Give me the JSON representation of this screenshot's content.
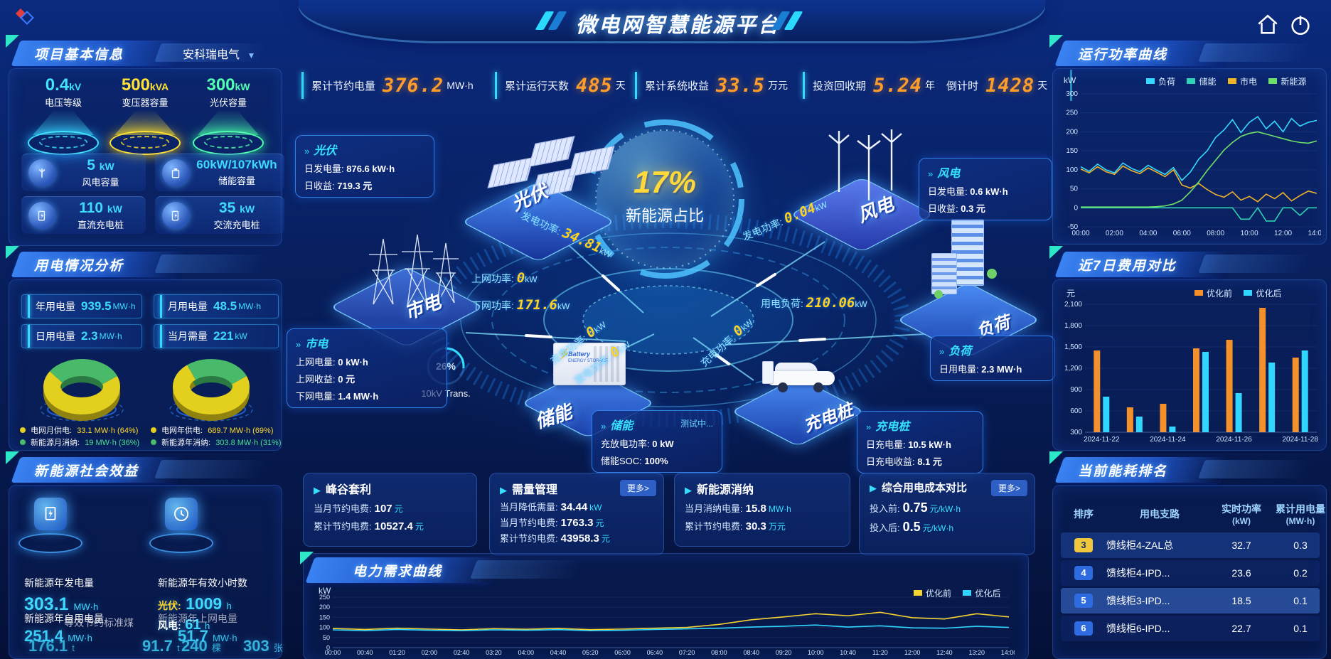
{
  "app": {
    "title": "微电网智慧能源平台",
    "company": "安科瑞电气"
  },
  "stats_bar": [
    {
      "label": "累计节约电量",
      "value": "376.2",
      "unit": "MW·h"
    },
    {
      "label": "累计运行天数",
      "value": "485",
      "unit": "天"
    },
    {
      "label": "累计系统收益",
      "value": "33.5",
      "unit": "万元"
    },
    {
      "label": "投资回收期",
      "value": "5.24",
      "unit": "年"
    },
    {
      "label": "倒计时",
      "value": "1428",
      "unit": "天"
    }
  ],
  "project": {
    "title": "项目基本信息",
    "cones": [
      {
        "value": "0.4",
        "unit": "kV",
        "label": "电压等级",
        "color": "#41e3ff"
      },
      {
        "value": "500",
        "unit": "kVA",
        "label": "变压器容量",
        "color": "#ffe235"
      },
      {
        "value": "300",
        "unit": "kW",
        "label": "光伏容量",
        "color": "#51ffb0"
      }
    ],
    "cards": [
      {
        "value": "5",
        "unit": "kW",
        "label": "风电容量"
      },
      {
        "value": "60kW/107kWh",
        "unit": "",
        "label": "储能容量"
      },
      {
        "value": "110",
        "unit": "kW",
        "label": "直流充电桩"
      },
      {
        "value": "35",
        "unit": "kW",
        "label": "交流充电桩"
      }
    ]
  },
  "usage": {
    "title": "用电情况分析",
    "stats": [
      {
        "label": "年用电量",
        "value": "939.5",
        "unit": "MW·h"
      },
      {
        "label": "月用电量",
        "value": "48.5",
        "unit": "MW·h"
      },
      {
        "label": "日用电量",
        "value": "2.3",
        "unit": "MW·h"
      },
      {
        "label": "当月需量",
        "value": "221",
        "unit": "kW"
      }
    ],
    "month_legend": [
      {
        "label": "电网月供电:",
        "value": "33.1 MW·h (64%)"
      },
      {
        "label": "新能源月消纳:",
        "value": "19 MW·h (36%)"
      }
    ],
    "year_legend": [
      {
        "label": "电网年供电:",
        "value": "689.7 MW·h (69%)"
      },
      {
        "label": "新能源年消纳:",
        "value": "303.8 MW·h (31%)"
      }
    ]
  },
  "benefits": {
    "title": "新能源社会效益",
    "generation": {
      "label": "新能源年发电量",
      "value": "303.1",
      "unit": "MW·h"
    },
    "hours": {
      "label": "新能源年有效小时数",
      "pv_label": "光伏:",
      "pv_value": "1009",
      "pv_unit": "h",
      "wind_label": "风电:",
      "wind_value": "61",
      "wind_unit": "h"
    },
    "self_use": {
      "label": "新能源年自用电量",
      "value": "251.4",
      "unit": "MW·h"
    },
    "coal": {
      "label": "等效节约标准煤",
      "value": "176.1",
      "unit": "t"
    },
    "co2": {
      "value": "91.7",
      "unit": "t"
    },
    "to_grid": {
      "label": "新能源年上网电量",
      "value": "51.7",
      "unit": "MW·h"
    },
    "trees": {
      "label": "等效植树数",
      "value": "240",
      "unit": "棵"
    },
    "certs": {
      "value": "303",
      "unit": "张"
    }
  },
  "diagram": {
    "center": {
      "value": "17%",
      "label": "新能源占比"
    },
    "gauge": {
      "value": "26%",
      "label": "10kV Trans."
    },
    "pv": {
      "name": "光伏",
      "l1": "日发电量:",
      "v1": "876.6 kW·h",
      "l2": "日收益:",
      "v2": "719.3 元"
    },
    "wind": {
      "name": "风电",
      "l1": "日发电量:",
      "v1": "0.6 kW·h",
      "l2": "日收益:",
      "v2": "0.3 元"
    },
    "grid": {
      "name": "市电",
      "l1": "上网电量:",
      "v1": "0 kW·h",
      "l2": "上网收益:",
      "v2": "0 元",
      "l3": "下网电量:",
      "v3": "1.4 MW·h"
    },
    "load": {
      "name": "负荷",
      "l1": "日用电量:",
      "v1": "2.3 MW·h"
    },
    "storage": {
      "name": "储能",
      "status": "测试中...",
      "l1": "充放电功率:",
      "v1": "0 kW",
      "l2": "储能SOC:",
      "v2": "100%"
    },
    "charger": {
      "name": "充电桩",
      "l1": "日充电量:",
      "v1": "10.5 kW·h",
      "l2": "日充电收益:",
      "v2": "8.1 元"
    },
    "flows": [
      {
        "label": "发电功率:",
        "value": "34.81",
        "unit": "kW"
      },
      {
        "label": "发电功率:",
        "value": "0.04",
        "unit": "kW"
      },
      {
        "label": "上网功率:",
        "value": "0",
        "unit": "kW"
      },
      {
        "label": "下网功率:",
        "value": "171.6",
        "unit": "kW"
      },
      {
        "label": "用电负荷:",
        "value": "210.06",
        "unit": "kW"
      },
      {
        "label": "充电功率:",
        "value": "0",
        "unit": "kW"
      },
      {
        "label": "放电功率:",
        "value": "0",
        "unit": "kW"
      },
      {
        "label": "充电功率:",
        "value": "0",
        "unit": "kW"
      }
    ]
  },
  "cards": [
    {
      "title": "峰谷套利",
      "lines": [
        {
          "label": "当月节约电费:",
          "value": "107",
          "unit": "元"
        },
        {
          "label": "累计节约电费:",
          "value": "10527.4",
          "unit": "元"
        }
      ]
    },
    {
      "title": "需量管理",
      "more": "更多>",
      "lines": [
        {
          "label": "当月降低需量:",
          "value": "34.44",
          "unit": "kW"
        },
        {
          "label": "当月节约电费:",
          "value": "1763.3",
          "unit": "元"
        },
        {
          "label": "累计节约电费:",
          "value": "43958.3",
          "unit": "元"
        }
      ]
    },
    {
      "title": "新能源消纳",
      "lines": [
        {
          "label": "当月消纳电量:",
          "value": "15.8",
          "unit": "MW·h"
        },
        {
          "label": "累计节约电费:",
          "value": "30.3",
          "unit": "万元"
        }
      ]
    },
    {
      "title": "综合用电成本对比",
      "more": "更多>",
      "lines": [
        {
          "label": "投入前:",
          "value": "0.75",
          "unit": "元/kW·h"
        },
        {
          "label": "投入后:",
          "value": "0.5",
          "unit": "元/kW·h"
        }
      ]
    }
  ],
  "demand_panel": {
    "title": "电力需求曲线"
  },
  "right": {
    "power_panel": {
      "title": "运行功率曲线",
      "ylabel": "kW"
    },
    "cost_panel": {
      "title": "近7日费用对比",
      "ylabel": "元"
    },
    "ranking": {
      "title": "当前能耗排名",
      "headers": [
        {
          "t": "排序",
          "s": ""
        },
        {
          "t": "用电支路",
          "s": ""
        },
        {
          "t": "实时功率",
          "s": "(kW)"
        },
        {
          "t": "累计用电量",
          "s": "(MW·h)"
        }
      ],
      "rows": [
        {
          "rank": "3",
          "name": "馈线柜4-ZAL总",
          "power": "32.7",
          "energy": "0.3"
        },
        {
          "rank": "4",
          "name": "馈线柜4-IPD...",
          "power": "23.6",
          "energy": "0.2"
        },
        {
          "rank": "5",
          "name": "馈线柜3-IPD...",
          "power": "18.5",
          "energy": "0.1"
        },
        {
          "rank": "6",
          "name": "馈线柜6-IPD...",
          "power": "22.7",
          "energy": "0.1"
        }
      ]
    }
  },
  "chart_data": [
    {
      "id": "chart-run",
      "type": "line",
      "title": "运行功率曲线",
      "ylabel": "kW",
      "ylim": [
        -50,
        300
      ],
      "yticks": [
        300,
        250,
        200,
        150,
        100,
        50,
        0,
        -50
      ],
      "x_labels": [
        "00:00",
        "02:00",
        "04:00",
        "06:00",
        "08:00",
        "10:00",
        "12:00",
        "14:00"
      ],
      "legend_position": "top",
      "series": [
        {
          "name": "负荷",
          "color": "#35d8ff",
          "values": [
            108,
            96,
            115,
            100,
            92,
            118,
            104,
            95,
            112,
            99,
            88,
            106,
            72,
            94,
            128,
            150,
            185,
            205,
            232,
            198,
            225,
            240,
            208,
            228,
            200,
            235,
            215,
            225,
            230
          ]
        },
        {
          "name": "储能",
          "color": "#2fd3b5",
          "values": [
            0,
            0,
            0,
            0,
            0,
            0,
            0,
            0,
            0,
            0,
            0,
            0,
            0,
            0,
            0,
            0,
            0,
            0,
            0,
            -30,
            -30,
            0,
            -35,
            -35,
            0,
            0,
            -20,
            0,
            0
          ]
        },
        {
          "name": "市电",
          "color": "#f0b32a",
          "values": [
            102,
            92,
            108,
            95,
            88,
            110,
            98,
            90,
            105,
            94,
            82,
            100,
            60,
            52,
            64,
            48,
            35,
            28,
            42,
            20,
            30,
            16,
            36,
            24,
            40,
            18,
            32,
            44,
            38
          ]
        },
        {
          "name": "新能源",
          "color": "#6ee06a",
          "values": [
            2,
            2,
            2,
            2,
            2,
            2,
            2,
            2,
            2,
            3,
            5,
            10,
            20,
            42,
            68,
            98,
            125,
            152,
            172,
            188,
            196,
            200,
            194,
            188,
            182,
            176,
            172,
            170,
            176
          ]
        }
      ]
    },
    {
      "id": "chart-cost",
      "type": "bar",
      "title": "近7日费用对比",
      "ylabel": "元",
      "ylim": [
        300,
        2100
      ],
      "yticks": [
        2100,
        1800,
        1500,
        1200,
        900,
        600,
        300
      ],
      "ytick_labels": [
        "2,100",
        "1,800",
        "1,500",
        "1,200",
        "900",
        "600",
        "300"
      ],
      "categories": [
        "2024-11-22",
        "2024-11-23",
        "2024-11-24",
        "2024-11-25",
        "2024-11-26",
        "2024-11-27",
        "2024-11-28"
      ],
      "xtick_every": 2,
      "legend_position": "top-right",
      "series": [
        {
          "name": "优化前",
          "color": "#f5912b",
          "values": [
            1450,
            650,
            700,
            1480,
            1600,
            2050,
            1350
          ]
        },
        {
          "name": "优化后",
          "color": "#30d6ff",
          "values": [
            800,
            520,
            380,
            1430,
            850,
            1280,
            1450
          ]
        }
      ]
    },
    {
      "id": "chart-demand",
      "type": "line",
      "title": "电力需求曲线",
      "ylabel": "kW",
      "ylim": [
        0,
        250
      ],
      "yticks": [
        250,
        200,
        150,
        100,
        50,
        0
      ],
      "x_labels": [
        "00:00",
        "00:40",
        "01:20",
        "02:00",
        "02:40",
        "03:20",
        "04:00",
        "04:40",
        "05:20",
        "06:00",
        "06:40",
        "07:20",
        "08:00",
        "08:40",
        "09:20",
        "10:00",
        "10:40",
        "11:20",
        "12:00",
        "12:40",
        "13:20",
        "14:00"
      ],
      "legend_position": "top-right",
      "series": [
        {
          "name": "优化前",
          "color": "#f5d331",
          "values": [
            95,
            90,
            96,
            92,
            88,
            94,
            91,
            95,
            89,
            92,
            96,
            100,
            115,
            138,
            152,
            168,
            158,
            175,
            148,
            142,
            168,
            152
          ]
        },
        {
          "name": "优化后",
          "color": "#30d6ff",
          "values": [
            88,
            84,
            90,
            86,
            84,
            88,
            86,
            89,
            84,
            86,
            90,
            93,
            96,
            102,
            106,
            112,
            102,
            108,
            98,
            96,
            106,
            100
          ]
        }
      ]
    },
    {
      "id": "donut-month",
      "type": "donut",
      "slices": [
        {
          "label": "电网月供电",
          "value": 64,
          "color": "#e3cf1d",
          "dark": "#8f8210"
        },
        {
          "label": "新能源月消纳",
          "value": 36,
          "color": "#49b96a",
          "dark": "#2b7a44"
        }
      ]
    },
    {
      "id": "donut-year",
      "type": "donut",
      "slices": [
        {
          "label": "电网年供电",
          "value": 69,
          "color": "#e3cf1d",
          "dark": "#8f8210"
        },
        {
          "label": "新能源年消纳",
          "value": 31,
          "color": "#49b96a",
          "dark": "#2b7a44"
        }
      ]
    }
  ]
}
